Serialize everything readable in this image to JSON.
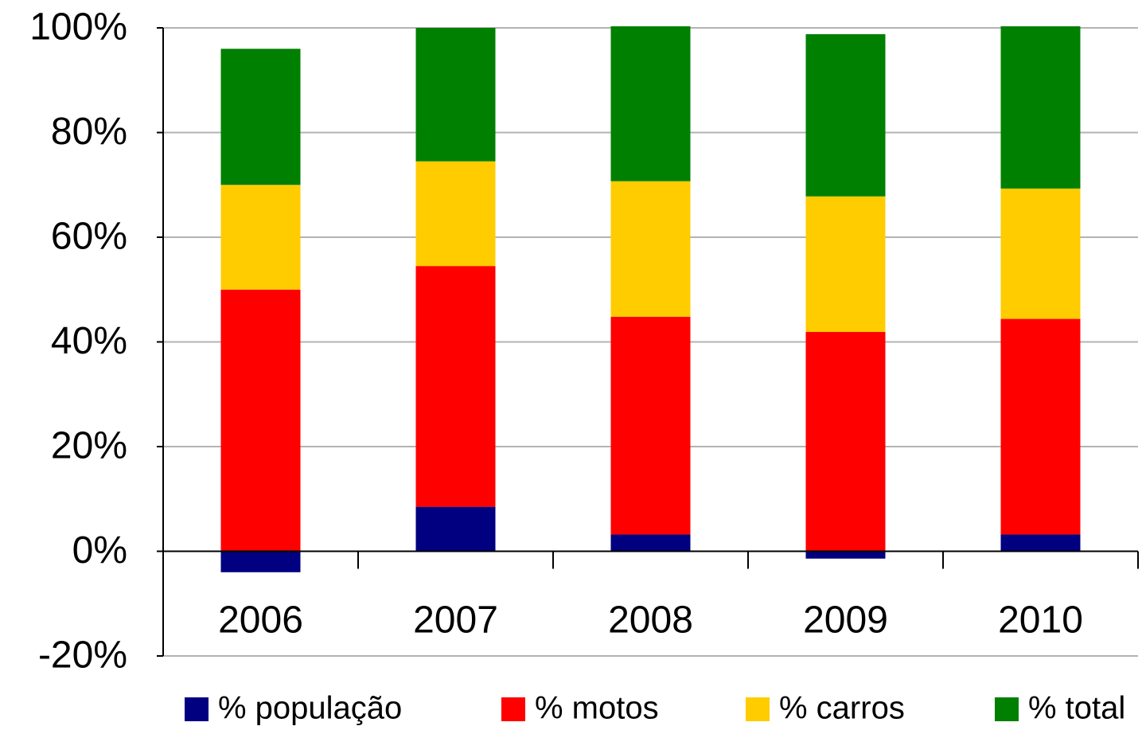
{
  "chart_data": {
    "type": "stacked_bar",
    "categories": [
      "2006",
      "2007",
      "2008",
      "2009",
      "2010"
    ],
    "series": [
      {
        "name": "% população",
        "color": "#000080",
        "values": [
          -4,
          8.5,
          3.2,
          -1.4,
          3.2
        ]
      },
      {
        "name": "% motos",
        "color": "#ff0000",
        "values": [
          50,
          46,
          41.6,
          41.9,
          41.2
        ]
      },
      {
        "name": "% carros",
        "color": "#ffcc00",
        "values": [
          20,
          20,
          25.9,
          25.9,
          24.9
        ]
      },
      {
        "name": "% total",
        "color": "#008000",
        "values": [
          26,
          25.5,
          29.6,
          31,
          31
        ]
      }
    ],
    "ylim": [
      -20,
      100
    ],
    "yticks": [
      {
        "value": -20,
        "label": "-20%"
      },
      {
        "value": 0,
        "label": "0%"
      },
      {
        "value": 20,
        "label": "20%"
      },
      {
        "value": 40,
        "label": "40%"
      },
      {
        "value": 60,
        "label": "60%"
      },
      {
        "value": 80,
        "label": "80%"
      },
      {
        "value": 100,
        "label": "100%"
      }
    ],
    "grid": true,
    "legend": "bottom"
  }
}
